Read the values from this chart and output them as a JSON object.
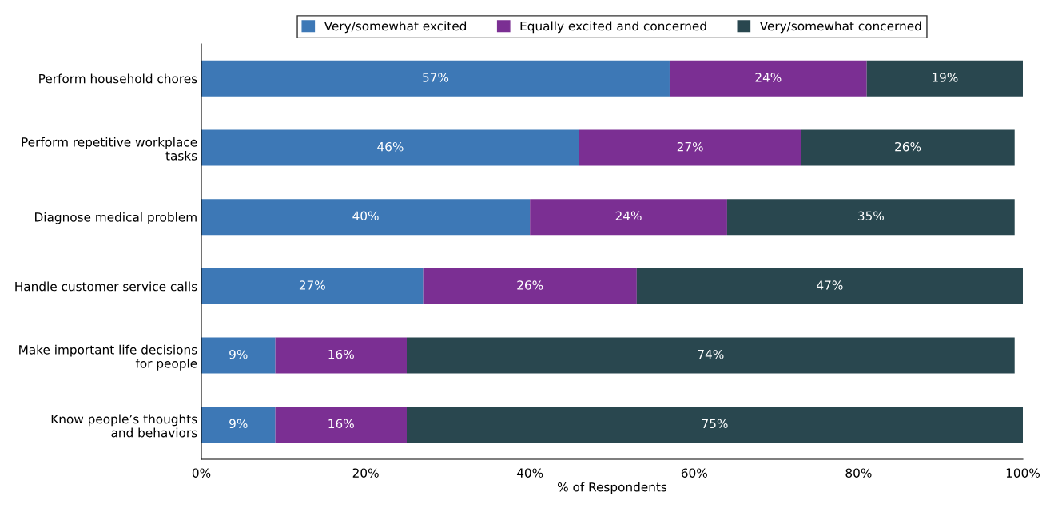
{
  "chart_data": {
    "type": "bar",
    "orientation": "horizontal",
    "stacked": true,
    "xlabel": "% of Respondents",
    "categories": [
      "Perform household chores",
      "Perform repetitive workplace\ntasks",
      "Diagnose medical problem",
      "Handle customer service calls",
      "Make important life decisions\nfor people",
      "Know people’s thoughts\nand behaviors"
    ],
    "series": [
      {
        "name": "Very/somewhat excited",
        "color": "#3d78b6",
        "values": [
          57,
          46,
          40,
          27,
          9,
          9
        ],
        "value_labels": [
          "57%",
          "46%",
          "40%",
          "27%",
          "9%",
          "9%"
        ]
      },
      {
        "name": "Equally excited and concerned",
        "color": "#7b2f93",
        "values": [
          24,
          27,
          24,
          26,
          16,
          16
        ],
        "value_labels": [
          "24%",
          "27%",
          "24%",
          "26%",
          "16%",
          "16%"
        ]
      },
      {
        "name": "Very/somewhat concerned",
        "color": "#29474f",
        "values": [
          19,
          26,
          35,
          47,
          74,
          75
        ],
        "value_labels": [
          "19%",
          "26%",
          "35%",
          "47%",
          "74%",
          "75%"
        ]
      }
    ],
    "xlim": [
      0,
      100
    ],
    "xticks": [
      {
        "value": 0,
        "label": "0%"
      },
      {
        "value": 20,
        "label": "20%"
      },
      {
        "value": 40,
        "label": "40%"
      },
      {
        "value": 60,
        "label": "60%"
      },
      {
        "value": 80,
        "label": "80%"
      },
      {
        "value": 100,
        "label": "100%"
      }
    ],
    "legend": "top",
    "grid": false
  }
}
